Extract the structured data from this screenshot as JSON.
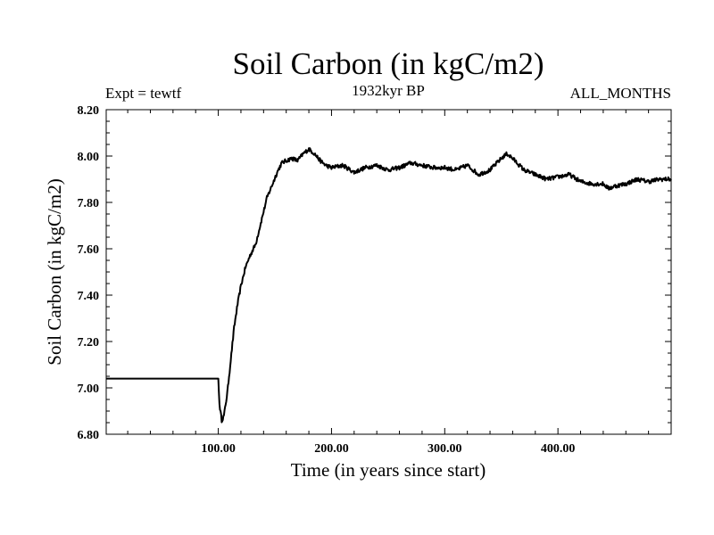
{
  "chart_data": {
    "type": "line",
    "title": "Soil Carbon (in kgC/m2)",
    "experiment": "Expt = tewtf",
    "period": "1932kyr BP",
    "months": "ALL_MONTHS",
    "xlabel": "Time (in years since start)",
    "ylabel": "Soil Carbon (in kgC/m2)",
    "xlim": [
      1,
      500
    ],
    "ylim": [
      6.8,
      8.2
    ],
    "xticks": [
      {
        "value": 100,
        "label": "100.00"
      },
      {
        "value": 200,
        "label": "200.00"
      },
      {
        "value": 300,
        "label": "300.00"
      },
      {
        "value": 400,
        "label": "400.00"
      }
    ],
    "yticks": [
      {
        "value": 6.8,
        "label": "6.80"
      },
      {
        "value": 7.0,
        "label": "7.00"
      },
      {
        "value": 7.2,
        "label": "7.20"
      },
      {
        "value": 7.4,
        "label": "7.40"
      },
      {
        "value": 7.6,
        "label": "7.60"
      },
      {
        "value": 7.8,
        "label": "7.80"
      },
      {
        "value": 8.0,
        "label": "8.00"
      },
      {
        "value": 8.2,
        "label": "8.20"
      }
    ],
    "series": [
      {
        "name": "Soil Carbon",
        "color": "#000000",
        "x": [
          1,
          100,
          101,
          103,
          105,
          108,
          111,
          114,
          117,
          120,
          124,
          128,
          133,
          138,
          143,
          148,
          152,
          156,
          160,
          165,
          170,
          175,
          180,
          185,
          190,
          195,
          200,
          210,
          220,
          230,
          240,
          250,
          260,
          270,
          280,
          290,
          300,
          310,
          320,
          330,
          340,
          350,
          355,
          360,
          370,
          380,
          390,
          400,
          410,
          420,
          430,
          440,
          445,
          450,
          460,
          470,
          480,
          490,
          500
        ],
        "values": [
          7.04,
          7.04,
          6.93,
          6.86,
          6.88,
          6.98,
          7.12,
          7.26,
          7.36,
          7.44,
          7.52,
          7.57,
          7.62,
          7.72,
          7.82,
          7.88,
          7.93,
          7.97,
          7.98,
          7.99,
          7.98,
          8.01,
          8.03,
          8.01,
          7.98,
          7.96,
          7.95,
          7.96,
          7.93,
          7.95,
          7.96,
          7.94,
          7.95,
          7.97,
          7.96,
          7.95,
          7.95,
          7.94,
          7.96,
          7.92,
          7.94,
          7.99,
          8.01,
          7.99,
          7.94,
          7.92,
          7.9,
          7.91,
          7.92,
          7.89,
          7.88,
          7.88,
          7.86,
          7.87,
          7.88,
          7.9,
          7.89,
          7.9,
          7.9
        ]
      }
    ]
  }
}
